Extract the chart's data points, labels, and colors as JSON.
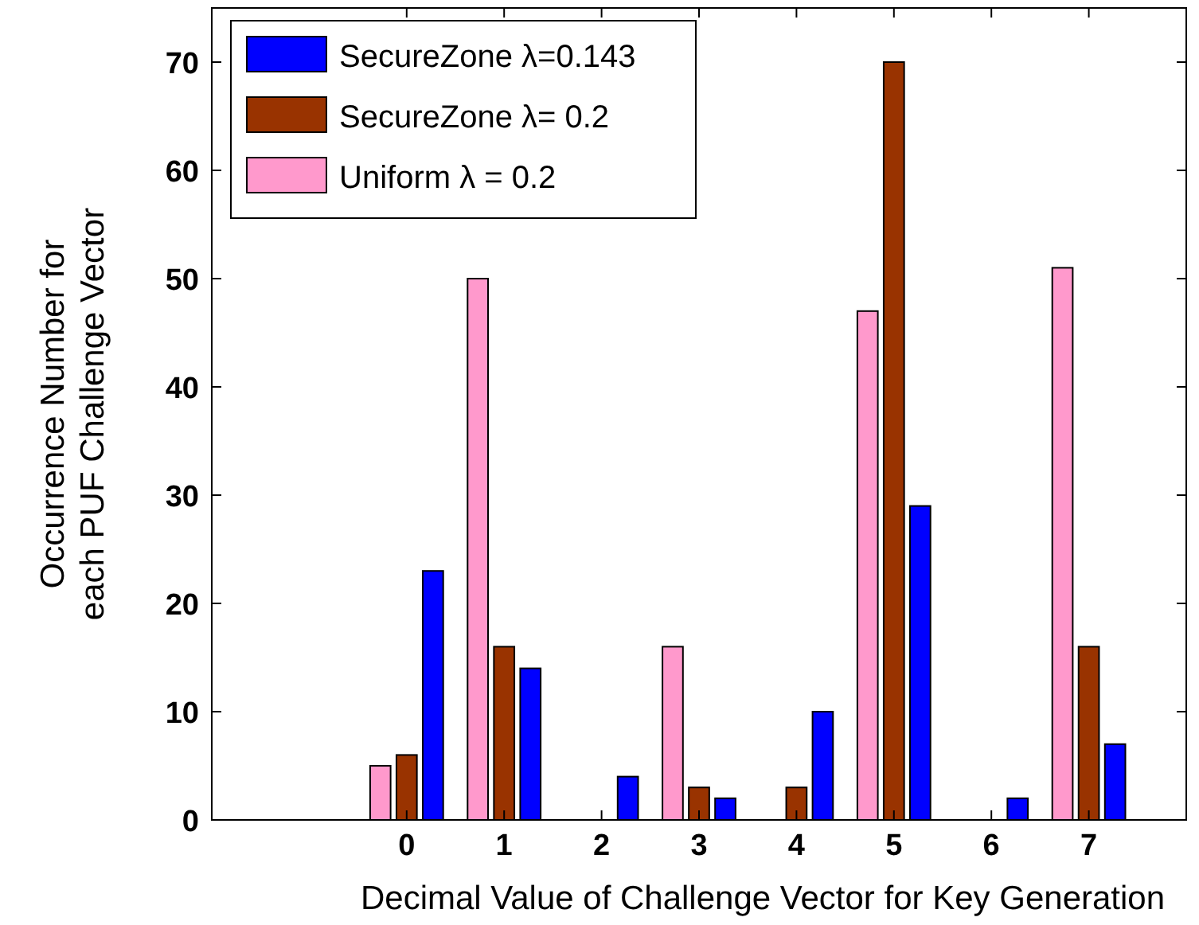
{
  "chart_data": {
    "type": "bar",
    "xlabel": "Decimal Value of Challenge Vector for Key Generation",
    "ylabel": "Occurrence Number for\neach PUF Challenge Vector",
    "x": [
      0,
      1,
      2,
      3,
      4,
      5,
      6,
      7
    ],
    "xlim": [
      -2,
      8
    ],
    "xticks": [
      0,
      1,
      2,
      3,
      4,
      5,
      6,
      7
    ],
    "ylim": [
      0,
      75
    ],
    "yticks": [
      0,
      10,
      20,
      30,
      40,
      50,
      60,
      70
    ],
    "legend": "top left",
    "grid": false,
    "series": [
      {
        "name": "SecureZone λ=0.143",
        "color": "#0000ff",
        "values": [
          23,
          14,
          4,
          2,
          10,
          29,
          2,
          7
        ]
      },
      {
        "name": "SecureZone λ= 0.2",
        "color": "#993300",
        "values": [
          6,
          16,
          0,
          3,
          3,
          70,
          0,
          16
        ]
      },
      {
        "name": "Uniform λ = 0.2",
        "color": "#ff99cc",
        "values": [
          5,
          50,
          0,
          16,
          0,
          47,
          0,
          51
        ]
      }
    ]
  }
}
